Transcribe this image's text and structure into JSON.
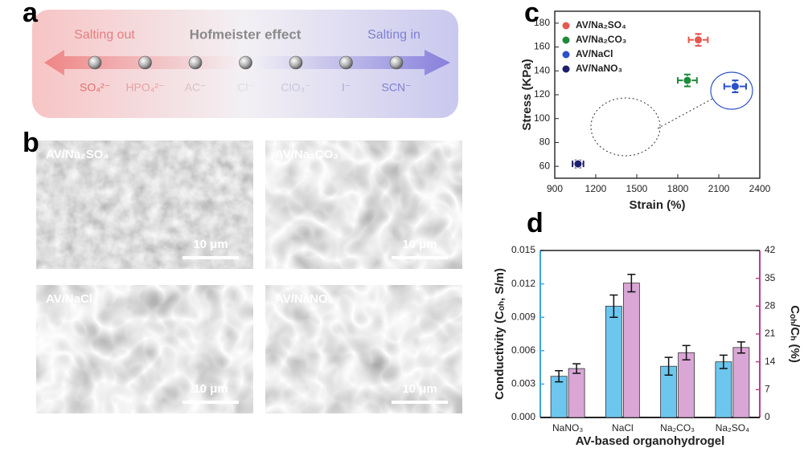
{
  "panels": {
    "letters": [
      "a",
      "b",
      "c",
      "d"
    ],
    "hofmeister": {
      "left": "Salting out",
      "title": "Hofmeister effect",
      "right": "Salting in",
      "ions": [
        "SO₄²⁻",
        "HPO₄²⁻",
        "AC⁻",
        "Cl⁻",
        "ClO₃⁻",
        "I⁻",
        "SCN⁻"
      ]
    },
    "sem": [
      {
        "label": "AV/Na₂SO₄",
        "scale": "10 μm"
      },
      {
        "label": "AV/Na₂CO₃",
        "scale": "10 μm"
      },
      {
        "label": "AV/NaCl",
        "scale": "10 μm"
      },
      {
        "label": "AV/NaNO₃",
        "scale": "10 μm"
      }
    ]
  },
  "chart_data": [
    {
      "type": "scatter",
      "xlabel": "Strain (%)",
      "ylabel": "Stress (KPa)",
      "xlim": [
        900,
        2400
      ],
      "xticks": [
        900,
        1200,
        1500,
        1800,
        2100,
        2400
      ],
      "ylim": [
        50,
        190
      ],
      "yticks": [
        60,
        80,
        100,
        120,
        140,
        160,
        180
      ],
      "legend": "top-left",
      "series": [
        {
          "name": "AV/Na₂SO₄",
          "color": "#e8574f",
          "x": [
            1950
          ],
          "values": [
            166
          ],
          "xerr": [
            70
          ],
          "yerr": [
            5
          ]
        },
        {
          "name": "AV/Na₂CO₃",
          "color": "#1e8a3a",
          "x": [
            1870
          ],
          "values": [
            132
          ],
          "xerr": [
            70
          ],
          "yerr": [
            5
          ]
        },
        {
          "name": "AV/NaCl",
          "color": "#2b50c8",
          "x": [
            2220
          ],
          "values": [
            127
          ],
          "xerr": [
            80
          ],
          "yerr": [
            5
          ]
        },
        {
          "name": "AV/NaNO₃",
          "color": "#1c1f6a",
          "x": [
            1070
          ],
          "values": [
            62
          ],
          "xerr": [
            40
          ],
          "yerr": [
            3
          ]
        }
      ]
    },
    {
      "type": "bar",
      "xlabel": "AV-based organohydrogel",
      "ylabel": "Conductivity (Cₒₕ, S/m)",
      "y2label": "Cₒₕ/Cₕ (%)",
      "categories": [
        "NaNO₃",
        "NaCl",
        "Na₂CO₃",
        "Na₂SO₄"
      ],
      "ylim": [
        0,
        0.015
      ],
      "yticks": [
        {
          "value": 0,
          "label": "0.000"
        },
        0.003,
        0.006,
        0.009,
        0.012,
        0.015
      ],
      "y2lim": [
        0,
        42
      ],
      "y2ticks": [
        0,
        7,
        14,
        21,
        28,
        35,
        42
      ],
      "ycolor": "#3aa6dc",
      "y2color": "#c0398f",
      "series": [
        {
          "color": "#6cc6ee",
          "values": [
            0.0037,
            0.01,
            0.0046,
            0.005
          ],
          "errors": [
            0.0005,
            0.001,
            0.0008,
            0.0006
          ]
        },
        {
          "color": "#d9a6d6",
          "axis": "y2",
          "values": [
            12.3,
            33.8,
            16.3,
            17.6
          ],
          "errors": [
            1.2,
            2.2,
            1.8,
            1.4
          ]
        }
      ]
    }
  ]
}
